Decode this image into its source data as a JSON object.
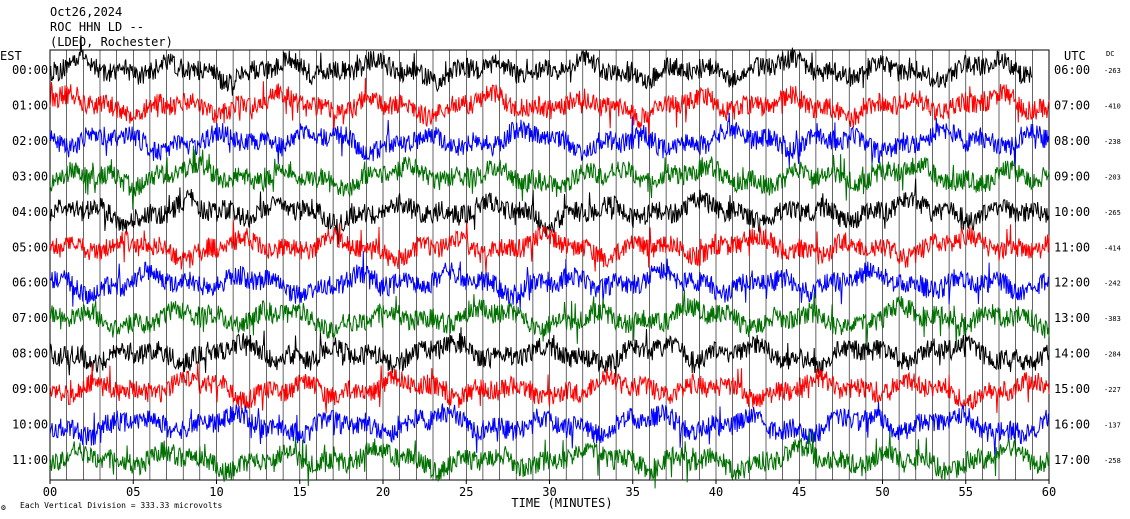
{
  "header": {
    "date": "Oct26,2024",
    "station": "ROC HHN LD --",
    "network": "(LDEO, Rochester)"
  },
  "left_axis_title": "EST",
  "right_axis_title": "UTC",
  "dc_title": "DC",
  "footer": {
    "mark": "⚙",
    "scale_note": "Each Vertical Division =  333.33 microvolts"
  },
  "chart_data": {
    "type": "line",
    "title": "ROC HHN LD --",
    "xlabel": "TIME (MINUTES)",
    "ylabel": "",
    "xlim": [
      0,
      60
    ],
    "x_ticks": [
      "00",
      "05",
      "10",
      "15",
      "20",
      "25",
      "30",
      "35",
      "40",
      "45",
      "50",
      "55",
      "60"
    ],
    "x_tick_values": [
      0,
      5,
      10,
      15,
      20,
      25,
      30,
      35,
      40,
      45,
      50,
      55,
      60
    ],
    "grid": true,
    "legend": "none",
    "series_colors": [
      "#000000",
      "#ff0000",
      "#0000ff",
      "#007000"
    ],
    "rows": [
      {
        "est": "00:00",
        "utc": "06:00",
        "dc": "-263",
        "color": "#000000",
        "end_minute": 59
      },
      {
        "est": "01:00",
        "utc": "07:00",
        "dc": "-410",
        "color": "#ff0000",
        "end_minute": 60
      },
      {
        "est": "02:00",
        "utc": "08:00",
        "dc": "-238",
        "color": "#0000ff",
        "end_minute": 60
      },
      {
        "est": "03:00",
        "utc": "09:00",
        "dc": "-203",
        "color": "#007000",
        "end_minute": 60
      },
      {
        "est": "04:00",
        "utc": "10:00",
        "dc": "-265",
        "color": "#000000",
        "end_minute": 60
      },
      {
        "est": "05:00",
        "utc": "11:00",
        "dc": "-414",
        "color": "#ff0000",
        "end_minute": 60
      },
      {
        "est": "06:00",
        "utc": "12:00",
        "dc": "-242",
        "color": "#0000ff",
        "end_minute": 60
      },
      {
        "est": "07:00",
        "utc": "13:00",
        "dc": "-383",
        "color": "#007000",
        "end_minute": 60
      },
      {
        "est": "08:00",
        "utc": "14:00",
        "dc": "-284",
        "color": "#000000",
        "end_minute": 60
      },
      {
        "est": "09:00",
        "utc": "15:00",
        "dc": "-227",
        "color": "#ff0000",
        "end_minute": 60
      },
      {
        "est": "10:00",
        "utc": "16:00",
        "dc": "-137",
        "color": "#0000ff",
        "end_minute": 60
      },
      {
        "est": "11:00",
        "utc": "17:00",
        "dc": "-258",
        "color": "#007000",
        "end_minute": 60
      }
    ]
  }
}
